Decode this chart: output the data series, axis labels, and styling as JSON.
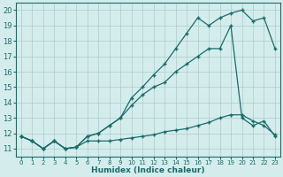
{
  "title": "",
  "xlabel": "Humidex (Indice chaleur)",
  "ylabel": "",
  "bg_color": "#d4edec",
  "line_color": "#1a6b6b",
  "marker": "+",
  "x": [
    0,
    1,
    2,
    3,
    4,
    5,
    6,
    7,
    8,
    9,
    10,
    11,
    12,
    13,
    14,
    15,
    16,
    17,
    18,
    19,
    20,
    21,
    22,
    23
  ],
  "series1": [
    11.8,
    11.5,
    11.0,
    11.5,
    11.0,
    11.1,
    11.5,
    11.5,
    11.5,
    11.6,
    11.7,
    11.8,
    11.9,
    12.1,
    12.2,
    12.3,
    12.5,
    12.7,
    13.0,
    13.2,
    13.2,
    12.8,
    12.5,
    11.9
  ],
  "series2": [
    11.8,
    11.5,
    11.0,
    11.5,
    11.0,
    11.1,
    11.8,
    12.0,
    12.5,
    13.0,
    13.8,
    14.5,
    15.0,
    15.3,
    16.0,
    16.5,
    17.0,
    17.5,
    17.5,
    19.0,
    13.0,
    12.5,
    12.8,
    11.8
  ],
  "series3": [
    11.8,
    11.5,
    11.0,
    11.5,
    11.0,
    11.1,
    11.8,
    12.0,
    12.5,
    13.0,
    14.3,
    15.0,
    15.8,
    16.5,
    17.5,
    18.5,
    19.5,
    19.0,
    19.5,
    19.8,
    20.0,
    19.3,
    19.5,
    17.5
  ],
  "ylim": [
    10.5,
    20.5
  ],
  "yticks": [
    11,
    12,
    13,
    14,
    15,
    16,
    17,
    18,
    19,
    20
  ],
  "xlim": [
    -0.5,
    23.5
  ],
  "xticks": [
    0,
    1,
    2,
    3,
    4,
    5,
    6,
    7,
    8,
    9,
    10,
    11,
    12,
    13,
    14,
    15,
    16,
    17,
    18,
    19,
    20,
    21,
    22,
    23
  ]
}
